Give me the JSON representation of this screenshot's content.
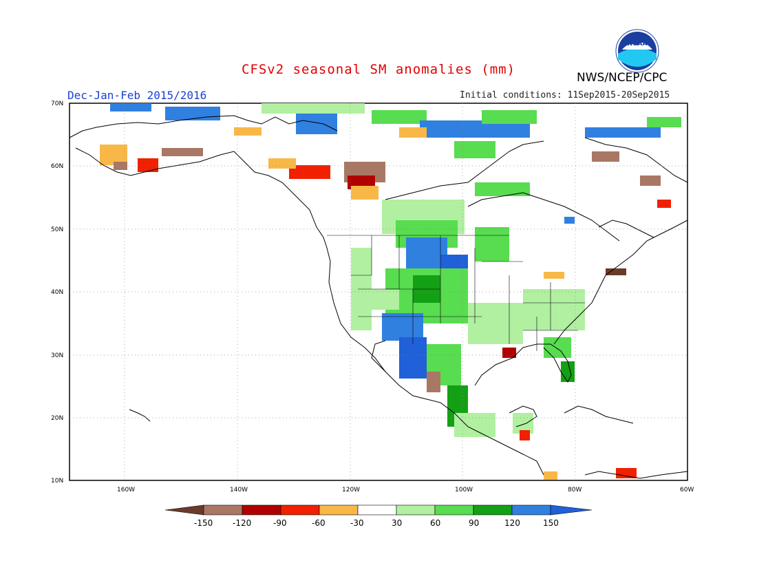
{
  "title": "CFSv2 seasonal SM anomalies (mm)",
  "period": "Dec-Jan-Feb 2015/2016",
  "initial_conditions": "Initial conditions: 11Sep2015-20Sep2015",
  "organization": "NWS/NCEP/CPC",
  "logo_text": "NOAA",
  "colors": {
    "title": "#e00000",
    "period": "#1a3fd6",
    "land_outline": "#000000"
  },
  "lat_labels": [
    "70N",
    "60N",
    "50N",
    "40N",
    "30N",
    "20N",
    "10N"
  ],
  "lon_labels": [
    "160W",
    "140W",
    "120W",
    "100W",
    "80W",
    "60W"
  ],
  "colorbar": {
    "labels": [
      "-150",
      "-120",
      "-90",
      "-60",
      "-30",
      "30",
      "60",
      "90",
      "120",
      "150"
    ],
    "colors": [
      "#6b3b2a",
      "#a87864",
      "#b00000",
      "#f02000",
      "#ff6a00",
      "#f8b848",
      "#ffffff",
      "#b0f0a0",
      "#58dc50",
      "#14a014",
      "#3080e0",
      "#2060d8"
    ]
  }
}
